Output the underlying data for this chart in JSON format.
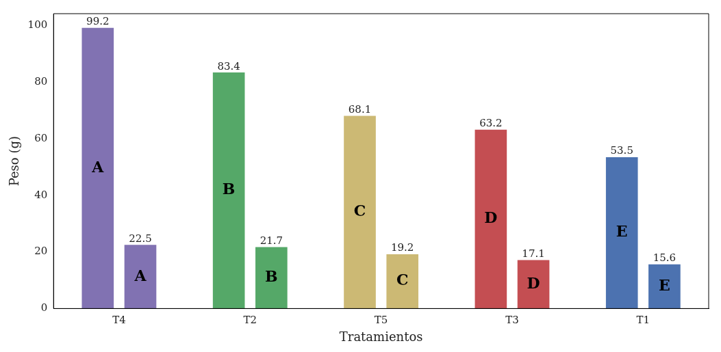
{
  "chart_data": {
    "type": "bar",
    "xlabel": "Tratamientos",
    "ylabel": "Peso (g)",
    "categories": [
      "T4",
      "T2",
      "T5",
      "T3",
      "T1"
    ],
    "series": [
      {
        "values": [
          99.2,
          83.4,
          68.1,
          63.2,
          53.5
        ],
        "colors": [
          "#8172b2",
          "#55a868",
          "#ccb974",
          "#c44e52",
          "#4c72b0"
        ]
      },
      {
        "values": [
          22.5,
          21.7,
          19.2,
          17.1,
          15.6
        ],
        "colors": [
          "#8172b2",
          "#55a868",
          "#ccb974",
          "#c44e52",
          "#4c72b0"
        ]
      }
    ],
    "annotations": [
      "A",
      "A",
      "B",
      "B",
      "C",
      "C",
      "D",
      "D",
      "E",
      "E"
    ],
    "ylim": [
      0,
      104.2
    ],
    "yticks": [
      0,
      20,
      40,
      60,
      80,
      100
    ],
    "data_labels": true,
    "grid": false,
    "legend": false
  }
}
